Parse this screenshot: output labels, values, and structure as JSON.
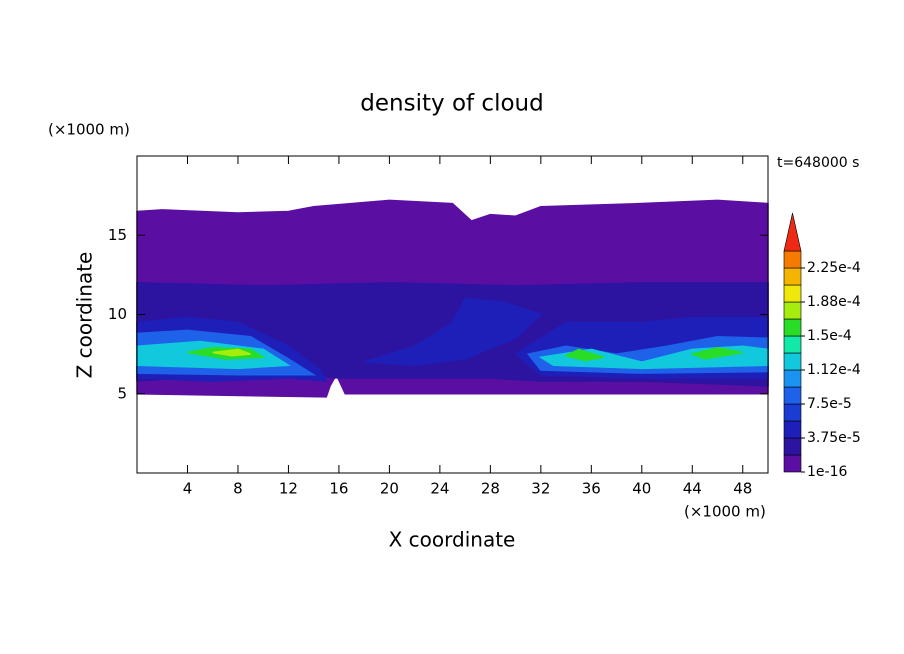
{
  "chart_data": {
    "type": "contour",
    "title": "density of cloud",
    "xlabel": "X coordinate",
    "ylabel": "Z coordinate",
    "x_unit": "(×1000 m)",
    "y_unit": "(×1000 m)",
    "time_label": "t=648000 s",
    "xlim": [
      0,
      50
    ],
    "ylim": [
      0,
      20
    ],
    "xticks": [
      4,
      8,
      12,
      16,
      20,
      24,
      28,
      32,
      36,
      40,
      44,
      48
    ],
    "yticks": [
      5,
      10,
      15
    ],
    "colorbar": {
      "levels": [
        {
          "value": 1e-16,
          "label": "1e-16"
        },
        1.875e-05,
        {
          "value": 3.75e-05,
          "label": "3.75e-5"
        },
        5.625e-05,
        {
          "value": 7.5e-05,
          "label": "7.5e-5"
        },
        9.375e-05,
        {
          "value": 0.000112,
          "label": "1.12e-4"
        },
        0.00013125,
        {
          "value": 0.00015,
          "label": "1.5e-4"
        },
        0.00016875,
        {
          "value": 0.000188,
          "label": "1.88e-4"
        },
        0.00020625,
        {
          "value": 0.000225,
          "label": "2.25e-4"
        },
        0.00024375
      ],
      "colors": [
        "#5a0ea2",
        "#2c14a0",
        "#1e1eb8",
        "#1a3cd2",
        "#1e62ea",
        "#1a94f0",
        "#12c8dc",
        "#12e8a8",
        "#28dc28",
        "#a6ec0c",
        "#f0e80a",
        "#f4b400",
        "#f47a00",
        "#ee2a14",
        "#f4a0a0"
      ]
    },
    "regions": [
      {
        "level": 1e-16,
        "points": [
          [
            0,
            16.5
          ],
          [
            2,
            16.6
          ],
          [
            8,
            16.4
          ],
          [
            12,
            16.5
          ],
          [
            14,
            16.8
          ],
          [
            20,
            17.2
          ],
          [
            25,
            17
          ],
          [
            26.5,
            15.9
          ],
          [
            28,
            16.3
          ],
          [
            30,
            16.2
          ],
          [
            32,
            16.8
          ],
          [
            40,
            17
          ],
          [
            46,
            17.2
          ],
          [
            50,
            17
          ],
          [
            50,
            5
          ],
          [
            30,
            5
          ],
          [
            20,
            5
          ],
          [
            16.5,
            5
          ],
          [
            15.8,
            6.2
          ],
          [
            15.3,
            5.5
          ],
          [
            15,
            4.8
          ],
          [
            0,
            5
          ]
        ]
      },
      {
        "level": 1.875e-05,
        "points": [
          [
            0,
            12
          ],
          [
            10,
            11.8
          ],
          [
            20,
            12
          ],
          [
            30,
            11.8
          ],
          [
            40,
            12
          ],
          [
            50,
            12
          ],
          [
            50,
            5.5
          ],
          [
            40,
            5.8
          ],
          [
            32,
            5.8
          ],
          [
            28,
            6
          ],
          [
            22,
            6
          ],
          [
            18,
            6
          ],
          [
            15.5,
            6
          ],
          [
            12,
            6.5
          ],
          [
            0,
            5.8
          ]
        ]
      },
      {
        "level": 3.75e-05,
        "points": [
          [
            0,
            9.5
          ],
          [
            4,
            9.8
          ],
          [
            8,
            9.5
          ],
          [
            12,
            8
          ],
          [
            14.5,
            6.5
          ],
          [
            15,
            5.8
          ],
          [
            12,
            6
          ],
          [
            6,
            5.8
          ],
          [
            0,
            6
          ]
        ]
      },
      {
        "level": 3.75e-05,
        "points": [
          [
            26,
            11
          ],
          [
            29,
            10.8
          ],
          [
            32,
            10
          ],
          [
            30,
            8.5
          ],
          [
            26,
            7.2
          ],
          [
            22,
            6.8
          ],
          [
            18,
            7
          ],
          [
            22,
            8
          ],
          [
            25,
            9.5
          ]
        ]
      },
      {
        "level": 3.75e-05,
        "points": [
          [
            30,
            7.5
          ],
          [
            34,
            9.5
          ],
          [
            40,
            9.5
          ],
          [
            44,
            9.8
          ],
          [
            50,
            9.8
          ],
          [
            50,
            6
          ],
          [
            40,
            6
          ],
          [
            32,
            6.2
          ]
        ]
      },
      {
        "level": 7.5e-05,
        "points": [
          [
            0,
            8.8
          ],
          [
            4,
            9
          ],
          [
            9,
            8.6
          ],
          [
            12,
            7.2
          ],
          [
            14,
            6.2
          ],
          [
            8,
            6.2
          ],
          [
            0,
            6.3
          ]
        ]
      },
      {
        "level": 7.5e-05,
        "points": [
          [
            31,
            7.5
          ],
          [
            34,
            8
          ],
          [
            38,
            7.5
          ],
          [
            42,
            8
          ],
          [
            46,
            8.6
          ],
          [
            50,
            8.5
          ],
          [
            50,
            6.4
          ],
          [
            40,
            6.3
          ],
          [
            32,
            6.5
          ]
        ]
      },
      {
        "level": 0.000112,
        "points": [
          [
            0,
            8
          ],
          [
            5,
            8.3
          ],
          [
            10,
            7.8
          ],
          [
            12,
            6.8
          ],
          [
            8,
            6.6
          ],
          [
            0,
            6.8
          ]
        ]
      },
      {
        "level": 0.000112,
        "points": [
          [
            32,
            7.3
          ],
          [
            36,
            7.8
          ],
          [
            40,
            7
          ],
          [
            44,
            7.8
          ],
          [
            48,
            8
          ],
          [
            50,
            7.8
          ],
          [
            50,
            6.8
          ],
          [
            40,
            6.6
          ],
          [
            33,
            6.8
          ]
        ]
      },
      {
        "level": 0.00015,
        "points": [
          [
            4,
            7.6
          ],
          [
            6,
            7.9
          ],
          [
            9,
            7.8
          ],
          [
            10,
            7.3
          ],
          [
            7,
            7.2
          ]
        ]
      },
      {
        "level": 0.00015,
        "points": [
          [
            34,
            7.4
          ],
          [
            35,
            7.8
          ],
          [
            37,
            7.3
          ],
          [
            35.5,
            7.1
          ]
        ]
      },
      {
        "level": 0.00015,
        "points": [
          [
            44,
            7.5
          ],
          [
            46,
            7.9
          ],
          [
            48,
            7.6
          ],
          [
            45,
            7.2
          ]
        ]
      },
      {
        "level": 0.00016875,
        "points": [
          [
            6,
            7.6
          ],
          [
            8,
            7.8
          ],
          [
            9,
            7.5
          ],
          [
            7.5,
            7.4
          ]
        ]
      }
    ]
  }
}
